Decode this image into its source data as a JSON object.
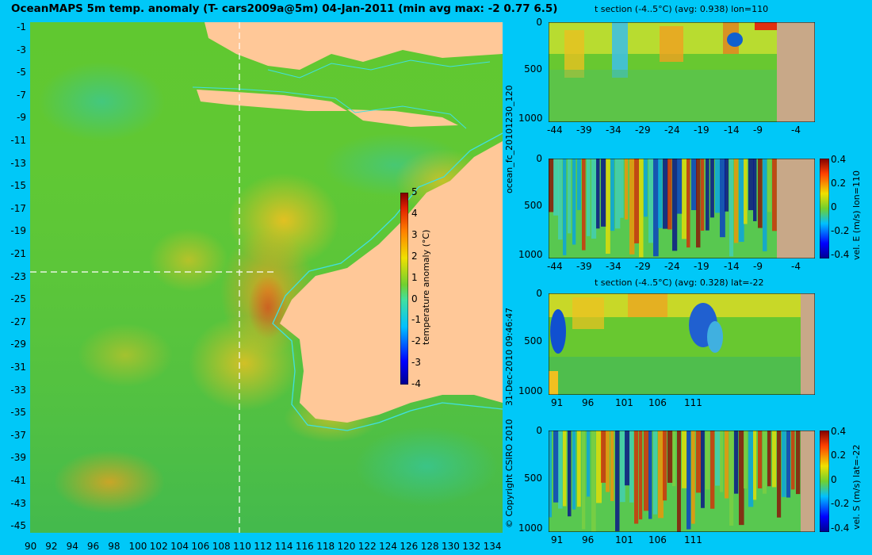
{
  "map": {
    "title": "OceanMAPS 5m temp. anomaly (T- cars2009a@5m) 04-Jan-2011 (min avg max: -2 0.77 6.5)",
    "lon_ticks": [
      "90",
      "92",
      "94",
      "96",
      "98",
      "100",
      "102",
      "104",
      "106",
      "108",
      "110",
      "112",
      "114",
      "116",
      "118",
      "120",
      "122",
      "124",
      "126",
      "128",
      "130",
      "132",
      "134"
    ],
    "lat_ticks": [
      "-1",
      "-3",
      "-5",
      "-7",
      "-9",
      "-11",
      "-13",
      "-15",
      "-17",
      "-19",
      "-21",
      "-23",
      "-25",
      "-27",
      "-29",
      "-31",
      "-33",
      "-35",
      "-37",
      "-39",
      "-41",
      "-43",
      "-45"
    ],
    "lon_range": [
      90,
      135
    ],
    "lat_range": [
      -45,
      0
    ],
    "section_lon": 110,
    "section_lat": -22,
    "colorbar": {
      "label": "temperature anomaly (°C)",
      "ticks": [
        "5",
        "4",
        "3",
        "2",
        "1",
        "0",
        "-1",
        "-2",
        "-3",
        "-4"
      ],
      "range": [
        -4,
        5
      ]
    },
    "land_color": "#ffc898",
    "coast_contour_color": "#40e0e0"
  },
  "side_labels": {
    "run": "ocean_fc_20101230_120",
    "timestamp": "31-Dec-2010 09:46:47",
    "copyright": "© Copyright CSIRO 2010"
  },
  "panels": {
    "p1": {
      "title": "t section (-4..5°C) (avg: 0.938) lon=110",
      "x_ticks": [
        "-44",
        "-39",
        "-34",
        "-29",
        "-24",
        "-19",
        "-14",
        "-9",
        "-4"
      ],
      "y_ticks": [
        "0",
        "500",
        "1000"
      ]
    },
    "p2": {
      "x_ticks": [
        "-44",
        "-39",
        "-34",
        "-29",
        "-24",
        "-19",
        "-14",
        "-9",
        "-4"
      ],
      "y_ticks": [
        "0",
        "500",
        "1000"
      ],
      "colorbar_ticks": [
        "0.4",
        "0.2",
        "0",
        "-0.2",
        "-0.4"
      ],
      "colorbar_label": "vel. E (m/s) lon=110"
    },
    "p3": {
      "title": "t section (-4..5°C) (avg: 0.328) lat=-22",
      "x_ticks": [
        "91",
        "96",
        "101",
        "106",
        "111"
      ],
      "y_ticks": [
        "0",
        "500",
        "1000"
      ]
    },
    "p4": {
      "x_ticks": [
        "91",
        "96",
        "101",
        "106",
        "111"
      ],
      "y_ticks": [
        "0",
        "500",
        "1000"
      ],
      "colorbar_ticks": [
        "0.4",
        "0.2",
        "0",
        "-0.2",
        "-0.4"
      ],
      "colorbar_label": "vel. S (m/s) lat=-22"
    }
  }
}
